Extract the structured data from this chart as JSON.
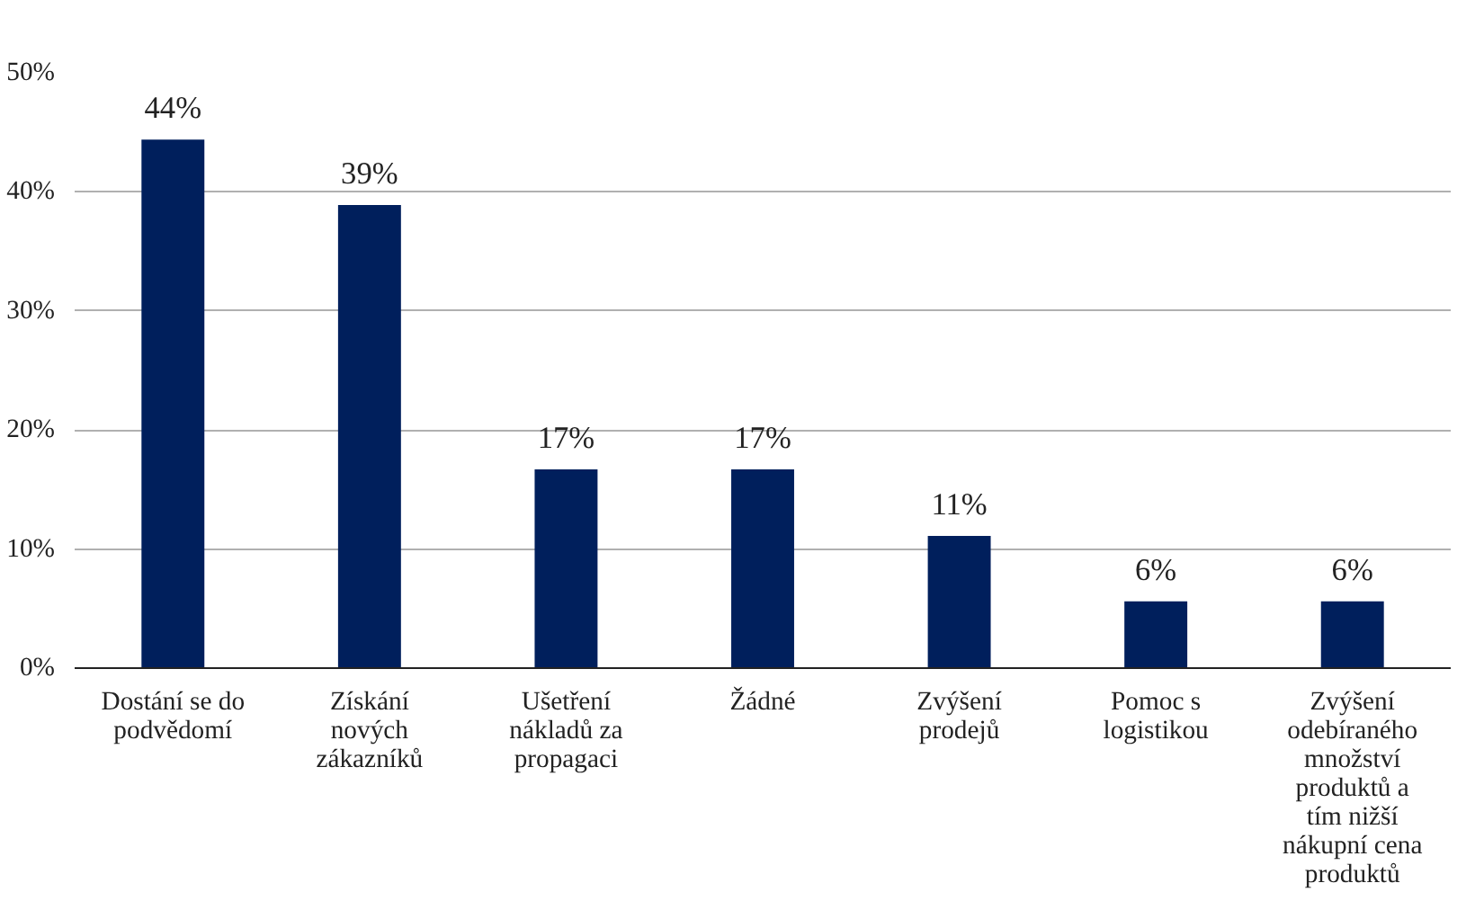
{
  "chart_data": {
    "type": "bar",
    "categories": [
      "Dostání se do podvědomí",
      "Získání nových zákazníků",
      "Ušetření nákladů za propagaci",
      "Žádné",
      "Zvýšení prodejů",
      "Pomoc s logistikou",
      "Zvýšení odebíraného množství produktů a tím nižší nákupní cena produktů"
    ],
    "values": [
      44.4,
      38.9,
      16.7,
      16.7,
      11.1,
      5.6,
      5.6
    ],
    "value_labels": [
      "44%",
      "39%",
      "17%",
      "17%",
      "11%",
      "6%",
      "6%"
    ],
    "color": "#001f5c",
    "ylim": [
      0,
      50
    ],
    "yticks": [
      {
        "value": 0,
        "label": "0%"
      },
      {
        "value": 10,
        "label": "10%"
      },
      {
        "value": 20,
        "label": "20%"
      },
      {
        "value": 30,
        "label": "30%"
      },
      {
        "value": 40,
        "label": "40%"
      },
      {
        "value": 50,
        "label": "50%"
      }
    ],
    "grid": "y"
  }
}
